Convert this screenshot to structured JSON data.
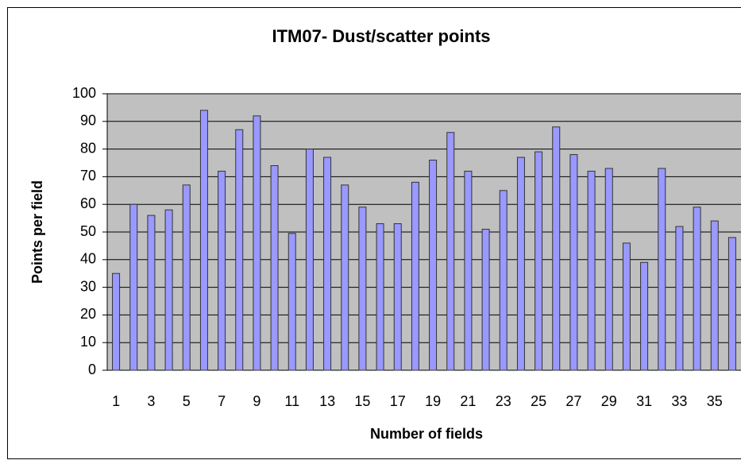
{
  "chart_data": {
    "type": "bar",
    "title": "ITM07- Dust/scatter points",
    "x_label": "Number of fields",
    "y_label": "Points per field",
    "categories": [
      "1",
      null,
      "3",
      null,
      "5",
      null,
      "7",
      null,
      "9",
      null,
      "11",
      null,
      "13",
      null,
      "15",
      null,
      "17",
      null,
      "19",
      null,
      "21",
      null,
      "23",
      null,
      "25",
      null,
      "27",
      null,
      "29",
      null,
      "31",
      null,
      "33",
      null,
      "35",
      null
    ],
    "values": [
      35,
      60,
      56,
      58,
      67,
      94,
      72,
      87,
      92,
      74,
      49.5,
      80,
      77,
      67,
      59,
      53,
      53,
      68,
      76,
      86,
      72,
      51,
      65,
      77,
      79,
      88,
      78,
      72,
      73,
      46,
      39,
      73,
      52,
      59,
      54,
      48
    ],
    "color": "#9999ff",
    "ylim": [
      0,
      100
    ],
    "yticks": [
      0,
      10,
      20,
      30,
      40,
      50,
      60,
      70,
      80,
      90,
      100
    ],
    "grid": true
  }
}
